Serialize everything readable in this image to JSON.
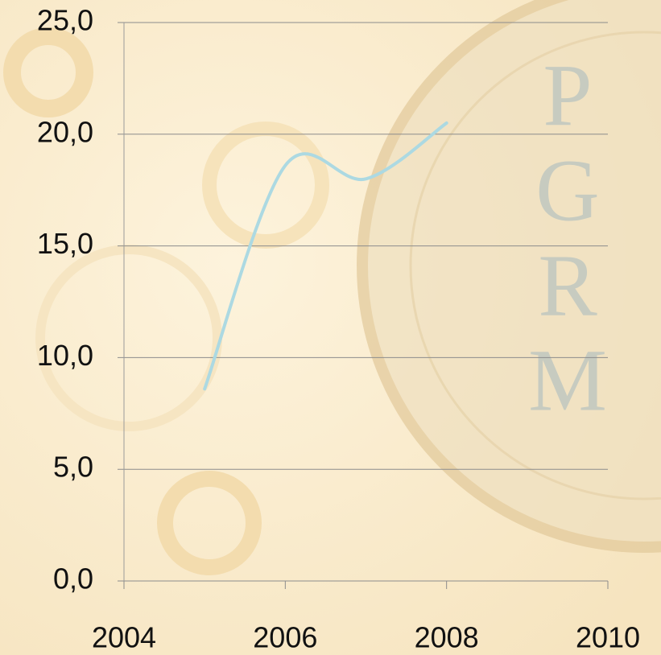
{
  "chart_data": {
    "type": "line",
    "x": [
      2005,
      2006,
      2007,
      2008
    ],
    "series": [
      {
        "color": "#acd9e2",
        "values": [
          8.6,
          18.6,
          18.0,
          20.5
        ]
      }
    ],
    "xlim": [
      2004,
      2010
    ],
    "xticks": [
      2004,
      2006,
      2008,
      2010
    ],
    "ylim": [
      0,
      25
    ],
    "yticks": [
      {
        "value": 0,
        "label": "0,0"
      },
      {
        "value": 5,
        "label": "5,0"
      },
      {
        "value": 10,
        "label": "10,0"
      },
      {
        "value": 15,
        "label": "15,0"
      },
      {
        "value": 20,
        "label": "20,0"
      },
      {
        "value": 25,
        "label": "25,0"
      }
    ],
    "grid": true,
    "watermark": [
      "P",
      "G",
      "R",
      "M"
    ]
  }
}
